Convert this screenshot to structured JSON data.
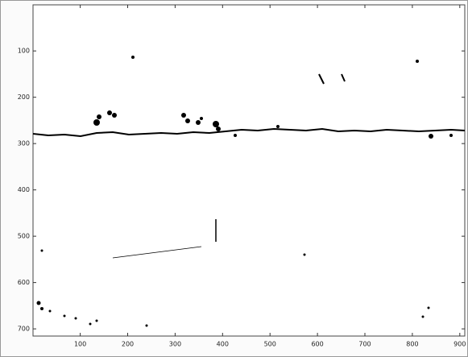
{
  "chart_data": {
    "type": "image",
    "xlim": [
      0.5,
      910.5
    ],
    "ylim": [
      0.5,
      715.5
    ],
    "y_reversed": true,
    "xticks": [
      100,
      200,
      300,
      400,
      500,
      600,
      700,
      800,
      900
    ],
    "yticks": [
      100,
      200,
      300,
      400,
      500,
      600,
      700
    ]
  }
}
